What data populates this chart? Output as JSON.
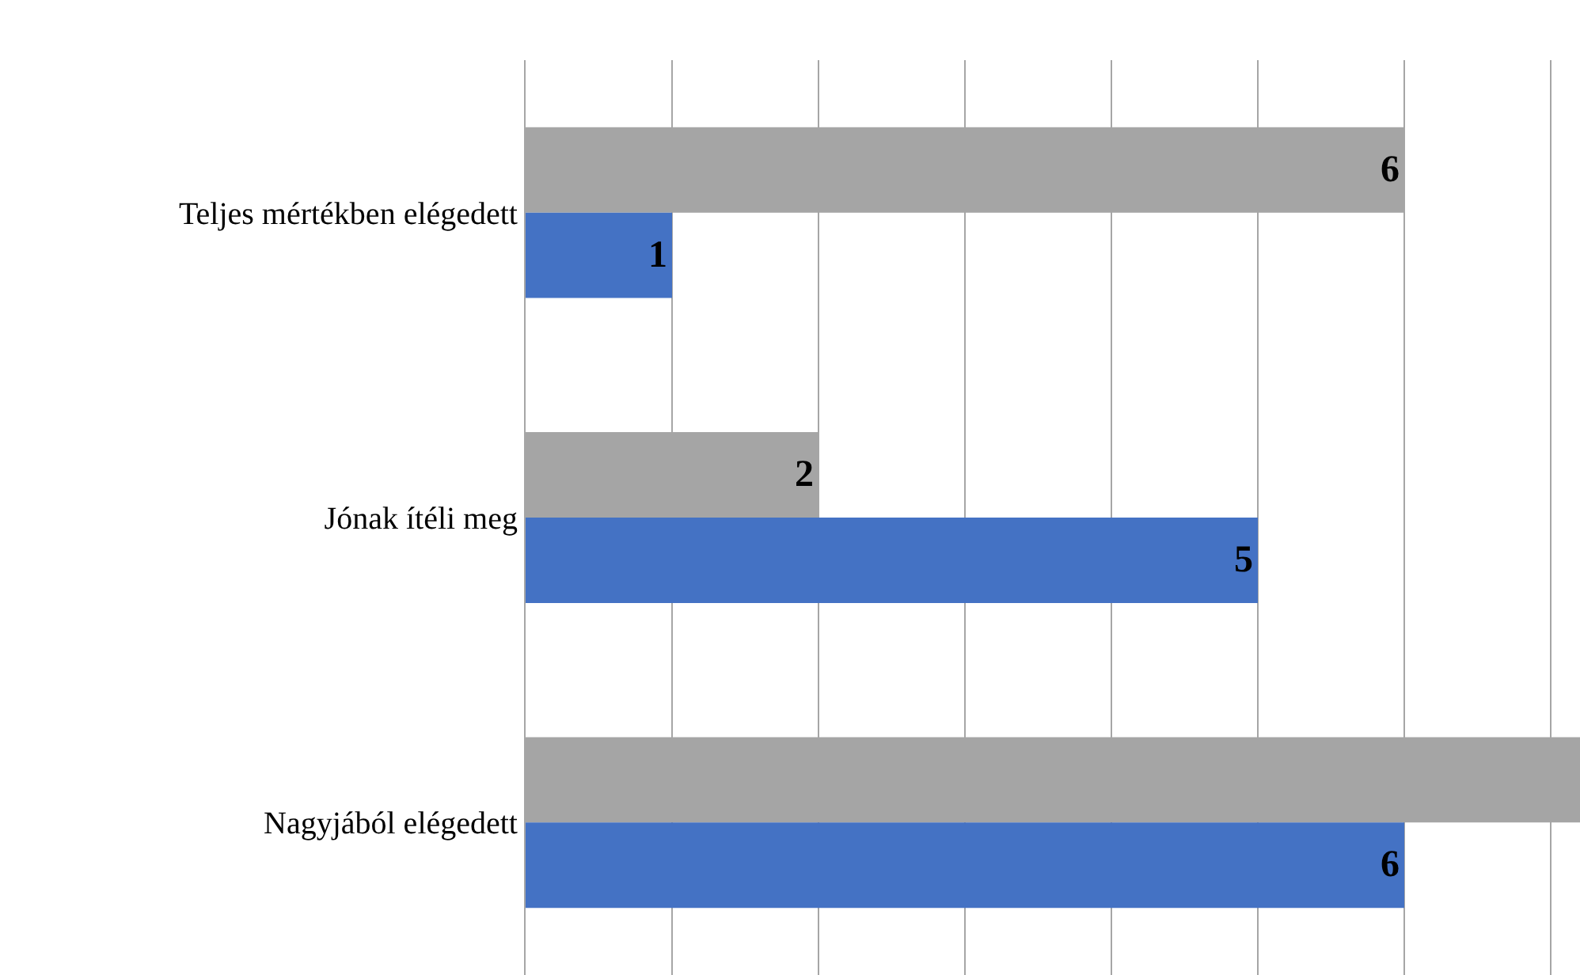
{
  "chart_data": {
    "type": "bar",
    "orientation": "horizontal",
    "categories": [
      "Teljes mértékben elégedett",
      "Jónak ítéli meg",
      "Nagyjából elégedett"
    ],
    "series": [
      {
        "color": "#a5a5a5",
        "values": [
          6,
          2,
          7.2
        ],
        "value_labels": [
          "6",
          "2",
          null
        ]
      },
      {
        "color": "#4472c4",
        "values": [
          1,
          5,
          6
        ],
        "value_labels": [
          "1",
          "5",
          "6"
        ]
      }
    ],
    "xlim": [
      0,
      7.2
    ],
    "xticks": [
      {
        "value": 0,
        "label": null
      },
      {
        "value": 1,
        "label": null
      },
      {
        "value": 2,
        "label": null
      },
      {
        "value": 3,
        "label": null
      },
      {
        "value": 4,
        "label": null
      },
      {
        "value": 5,
        "label": null
      },
      {
        "value": 6,
        "label": null
      },
      {
        "value": 7,
        "label": null
      }
    ],
    "grid": "x",
    "tick_labels": "y"
  }
}
